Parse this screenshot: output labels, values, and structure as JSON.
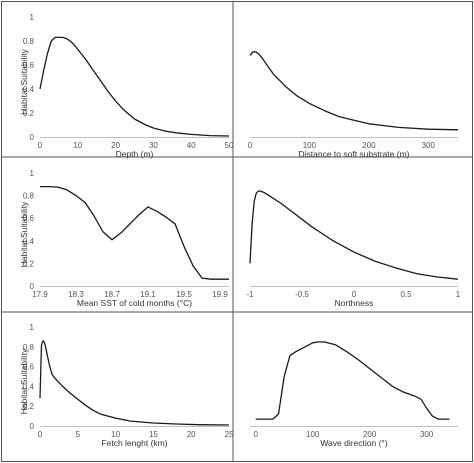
{
  "chart_data": [
    {
      "type": "line",
      "xlabel": "Depth (m)",
      "ylabel": "Habitat Suitability",
      "xlim": [
        0,
        50
      ],
      "ylim": [
        0,
        1
      ],
      "x_ticks": [
        "0",
        "10",
        "20",
        "30",
        "40",
        "50"
      ],
      "y_ticks": [
        "0",
        "0.2",
        "0.4",
        "0.6",
        "0.8",
        "1"
      ],
      "series": [
        {
          "x": [
            0,
            1,
            2,
            3,
            4,
            5,
            6,
            7,
            8,
            9,
            10,
            12,
            14,
            16,
            18,
            20,
            22,
            25,
            28,
            30,
            33,
            36,
            40,
            45,
            50
          ],
          "y": [
            0.4,
            0.56,
            0.7,
            0.8,
            0.83,
            0.83,
            0.83,
            0.82,
            0.8,
            0.77,
            0.73,
            0.65,
            0.56,
            0.47,
            0.38,
            0.3,
            0.23,
            0.15,
            0.1,
            0.075,
            0.05,
            0.035,
            0.022,
            0.012,
            0.008
          ]
        }
      ]
    },
    {
      "type": "line",
      "xlabel": "Distance to soft substrate (m)",
      "ylabel": "",
      "xlim": [
        0,
        350
      ],
      "ylim": [
        0,
        1
      ],
      "x_ticks": [
        "0",
        "100",
        "200",
        "300"
      ],
      "y_ticks": [],
      "series": [
        {
          "x": [
            0,
            5,
            10,
            15,
            20,
            30,
            40,
            60,
            80,
            100,
            125,
            150,
            175,
            200,
            250,
            300,
            350
          ],
          "y": [
            0.68,
            0.71,
            0.71,
            0.69,
            0.66,
            0.59,
            0.52,
            0.42,
            0.34,
            0.28,
            0.22,
            0.17,
            0.14,
            0.11,
            0.08,
            0.065,
            0.06
          ]
        }
      ]
    },
    {
      "type": "line",
      "xlabel": "Mean SST of cold months (°C)",
      "ylabel": "Habitat Suitability",
      "xlim": [
        17.9,
        20.0
      ],
      "ylim": [
        0,
        1
      ],
      "x_ticks": [
        "17.9",
        "18.3",
        "18.7",
        "19.1",
        "19.5",
        "19.9"
      ],
      "y_ticks": [
        "0",
        "0.2",
        "0.4",
        "0.6",
        "0.8",
        "1"
      ],
      "series": [
        {
          "x": [
            17.9,
            18.0,
            18.1,
            18.2,
            18.3,
            18.4,
            18.5,
            18.6,
            18.7,
            18.8,
            18.9,
            19.0,
            19.1,
            19.2,
            19.3,
            19.4,
            19.5,
            19.6,
            19.7,
            19.8,
            19.9,
            20.0
          ],
          "y": [
            0.88,
            0.88,
            0.875,
            0.85,
            0.8,
            0.74,
            0.62,
            0.48,
            0.41,
            0.47,
            0.55,
            0.63,
            0.7,
            0.66,
            0.61,
            0.55,
            0.35,
            0.18,
            0.07,
            0.06,
            0.06,
            0.06
          ]
        }
      ]
    },
    {
      "type": "line",
      "xlabel": "Northness",
      "ylabel": "",
      "xlim": [
        -1,
        1
      ],
      "ylim": [
        0,
        1
      ],
      "x_ticks": [
        "-1",
        "-0.5",
        "0",
        "0.5",
        "1"
      ],
      "y_ticks": [],
      "series": [
        {
          "x": [
            -1.0,
            -0.98,
            -0.96,
            -0.94,
            -0.92,
            -0.9,
            -0.87,
            -0.8,
            -0.7,
            -0.6,
            -0.5,
            -0.4,
            -0.3,
            -0.2,
            0.0,
            0.2,
            0.4,
            0.6,
            0.8,
            1.0
          ],
          "y": [
            0.2,
            0.55,
            0.75,
            0.82,
            0.84,
            0.84,
            0.83,
            0.79,
            0.73,
            0.66,
            0.59,
            0.52,
            0.46,
            0.4,
            0.3,
            0.22,
            0.16,
            0.11,
            0.08,
            0.06
          ]
        }
      ]
    },
    {
      "type": "line",
      "xlabel": "Fetch lenght (km)",
      "ylabel": "Habitat Suitability",
      "xlim": [
        0,
        25
      ],
      "ylim": [
        0,
        1
      ],
      "x_ticks": [
        "0",
        "5",
        "10",
        "15",
        "20",
        "25"
      ],
      "y_ticks": [
        "0",
        "0.2",
        "0.4",
        "0.6",
        "0.8",
        "1"
      ],
      "series": [
        {
          "x": [
            0,
            0.2,
            0.4,
            0.6,
            0.8,
            1.0,
            1.3,
            1.6,
            2,
            3,
            4,
            5,
            6,
            7,
            8,
            10,
            12,
            15,
            18,
            21,
            25
          ],
          "y": [
            0.28,
            0.82,
            0.86,
            0.84,
            0.78,
            0.7,
            0.6,
            0.52,
            0.48,
            0.4,
            0.33,
            0.27,
            0.21,
            0.16,
            0.12,
            0.08,
            0.05,
            0.03,
            0.02,
            0.013,
            0.01
          ]
        }
      ]
    },
    {
      "type": "line",
      "xlabel": "Wave direction (°)",
      "ylabel": "",
      "xlim": [
        -10,
        355
      ],
      "ylim": [
        0,
        1
      ],
      "x_ticks": [
        "0",
        "100",
        "200",
        "300"
      ],
      "y_ticks": [],
      "series": [
        {
          "x": [
            0,
            20,
            30,
            40,
            50,
            60,
            70,
            80,
            90,
            100,
            110,
            120,
            140,
            160,
            180,
            200,
            220,
            240,
            260,
            270,
            280,
            290,
            300,
            310,
            320,
            330,
            340
          ],
          "y": [
            0.07,
            0.07,
            0.07,
            0.12,
            0.5,
            0.71,
            0.75,
            0.78,
            0.81,
            0.84,
            0.85,
            0.85,
            0.82,
            0.75,
            0.67,
            0.58,
            0.49,
            0.4,
            0.34,
            0.32,
            0.3,
            0.27,
            0.18,
            0.1,
            0.07,
            0.07,
            0.07
          ]
        }
      ]
    }
  ]
}
